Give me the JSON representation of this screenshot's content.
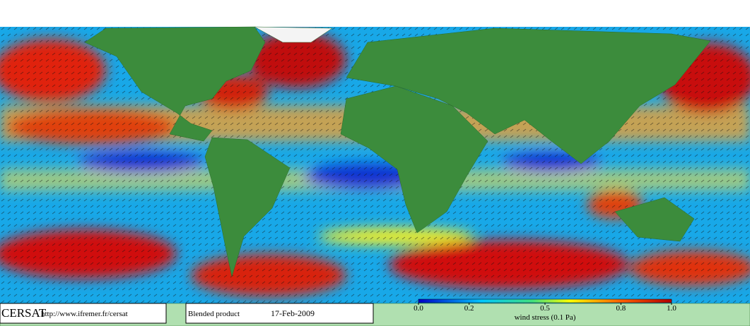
{
  "footer": {
    "logo": "CERSAT",
    "url": "http://www.ifremer.fr/cersat",
    "product": "Blended product",
    "date": "17-Feb-2009"
  },
  "colorbar": {
    "label": "wind stress (0.1 Pa)",
    "lim": [
      0,
      1
    ],
    "ticks": [
      {
        "value": 0,
        "label": "0.0"
      },
      0.2,
      0.5,
      0.8,
      {
        "value": 1,
        "label": "1.0"
      }
    ]
  }
}
